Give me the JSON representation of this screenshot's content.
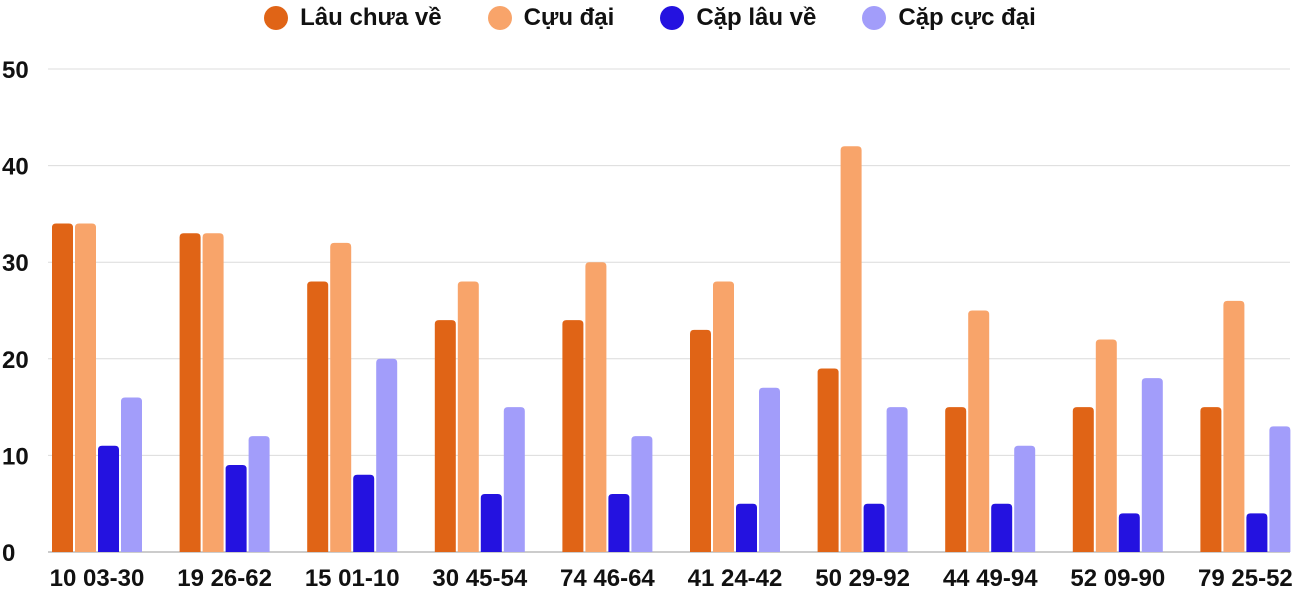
{
  "chart_data": {
    "type": "bar",
    "title": "",
    "xlabel": "",
    "ylabel": "",
    "ylim": [
      0,
      50
    ],
    "yticks": [
      0,
      10,
      20,
      30,
      40,
      50
    ],
    "grid": true,
    "legend_position": "top-center",
    "categories": [
      "10 03-30",
      "19 26-62",
      "15 01-10",
      "30 45-54",
      "74 46-64",
      "41 24-42",
      "50 29-92",
      "44 49-94",
      "52 09-90",
      "79 25-52"
    ],
    "series": [
      {
        "name": "Lâu chưa về",
        "color": "#e06416",
        "values": [
          34,
          33,
          28,
          24,
          24,
          23,
          19,
          15,
          15,
          15
        ]
      },
      {
        "name": "Cựu đại",
        "color": "#f8a46a",
        "values": [
          34,
          33,
          32,
          28,
          30,
          28,
          42,
          25,
          22,
          26
        ]
      },
      {
        "name": "Cặp lâu về",
        "color": "#2412e0",
        "values": [
          11,
          9,
          8,
          6,
          6,
          5,
          5,
          5,
          4,
          4
        ]
      },
      {
        "name": "Cặp cực đại",
        "color": "#a29dfa",
        "values": [
          16,
          12,
          20,
          15,
          12,
          17,
          15,
          11,
          18,
          13
        ]
      }
    ]
  }
}
